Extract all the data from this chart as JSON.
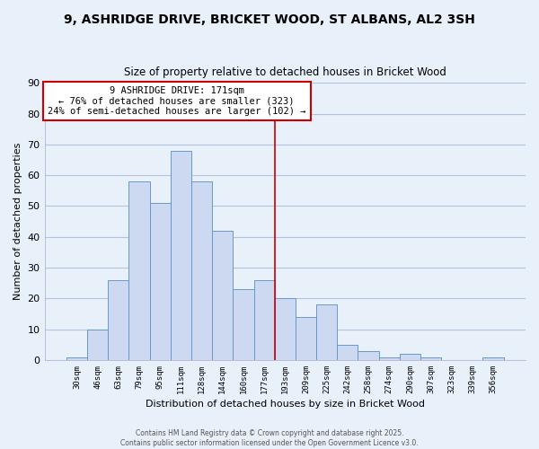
{
  "title": "9, ASHRIDGE DRIVE, BRICKET WOOD, ST ALBANS, AL2 3SH",
  "subtitle": "Size of property relative to detached houses in Bricket Wood",
  "xlabel": "Distribution of detached houses by size in Bricket Wood",
  "ylabel": "Number of detached properties",
  "bar_labels": [
    "30sqm",
    "46sqm",
    "63sqm",
    "79sqm",
    "95sqm",
    "111sqm",
    "128sqm",
    "144sqm",
    "160sqm",
    "177sqm",
    "193sqm",
    "209sqm",
    "225sqm",
    "242sqm",
    "258sqm",
    "274sqm",
    "290sqm",
    "307sqm",
    "323sqm",
    "339sqm",
    "356sqm"
  ],
  "bar_values": [
    1,
    10,
    26,
    58,
    51,
    68,
    58,
    42,
    23,
    26,
    20,
    14,
    18,
    5,
    3,
    1,
    2,
    1,
    0,
    0,
    1
  ],
  "bar_color": "#ccd9f0",
  "bar_edge_color": "#6699cc",
  "grid_color": "#b0c4de",
  "background_color": "#e8f0fa",
  "ylim": [
    0,
    90
  ],
  "yticks": [
    0,
    10,
    20,
    30,
    40,
    50,
    60,
    70,
    80,
    90
  ],
  "property_label": "9 ASHRIDGE DRIVE: 171sqm",
  "annotation_line1": "← 76% of detached houses are smaller (323)",
  "annotation_line2": "24% of semi-detached houses are larger (102) →",
  "vline_color": "#cc0000",
  "vline_position": 9.5,
  "annotation_box_color": "#ffffff",
  "annotation_box_edge": "#cc0000",
  "footer1": "Contains HM Land Registry data © Crown copyright and database right 2025.",
  "footer2": "Contains public sector information licensed under the Open Government Licence v3.0."
}
